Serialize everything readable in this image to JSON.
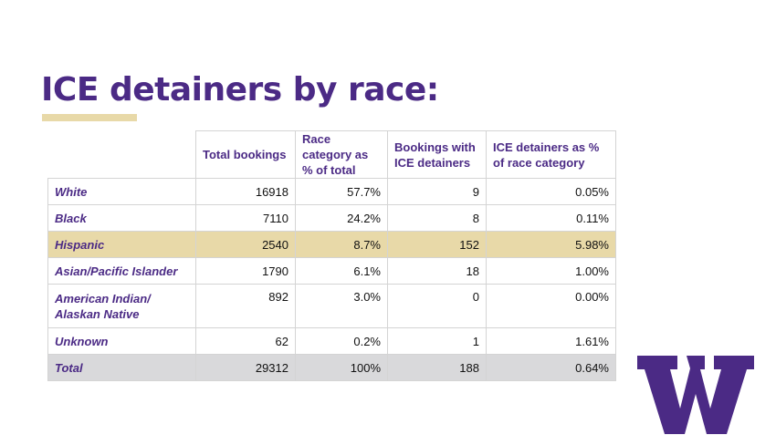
{
  "slide": {
    "title": "ICE detainers by race:",
    "accent_color": "#4b2a85",
    "highlight_color": "#e8d9a8",
    "logo_icon": "uw-w-logo"
  },
  "table": {
    "headers": [
      "",
      "Total bookings",
      "Race category as % of total",
      "Bookings with ICE detainers",
      "ICE detainers as % of race category"
    ],
    "rows": [
      {
        "label": "White",
        "total": "16918",
        "pct_total": "57.7%",
        "ice": "9",
        "ice_pct": "0.05%"
      },
      {
        "label": "Black",
        "total": "7110",
        "pct_total": "24.2%",
        "ice": "8",
        "ice_pct": "0.11%"
      },
      {
        "label": "Hispanic",
        "total": "2540",
        "pct_total": "8.7%",
        "ice": "152",
        "ice_pct": "5.98%"
      },
      {
        "label": "Asian/Pacific Islander",
        "total": "1790",
        "pct_total": "6.1%",
        "ice": "18",
        "ice_pct": "1.00%"
      },
      {
        "label": "American Indian/ Alaskan Native",
        "total": "892",
        "pct_total": "3.0%",
        "ice": "0",
        "ice_pct": "0.00%"
      },
      {
        "label": "Unknown",
        "total": "62",
        "pct_total": "0.2%",
        "ice": "1",
        "ice_pct": "1.61%"
      },
      {
        "label": "Total",
        "total": "29312",
        "pct_total": "100%",
        "ice": "188",
        "ice_pct": "0.64%"
      }
    ]
  }
}
